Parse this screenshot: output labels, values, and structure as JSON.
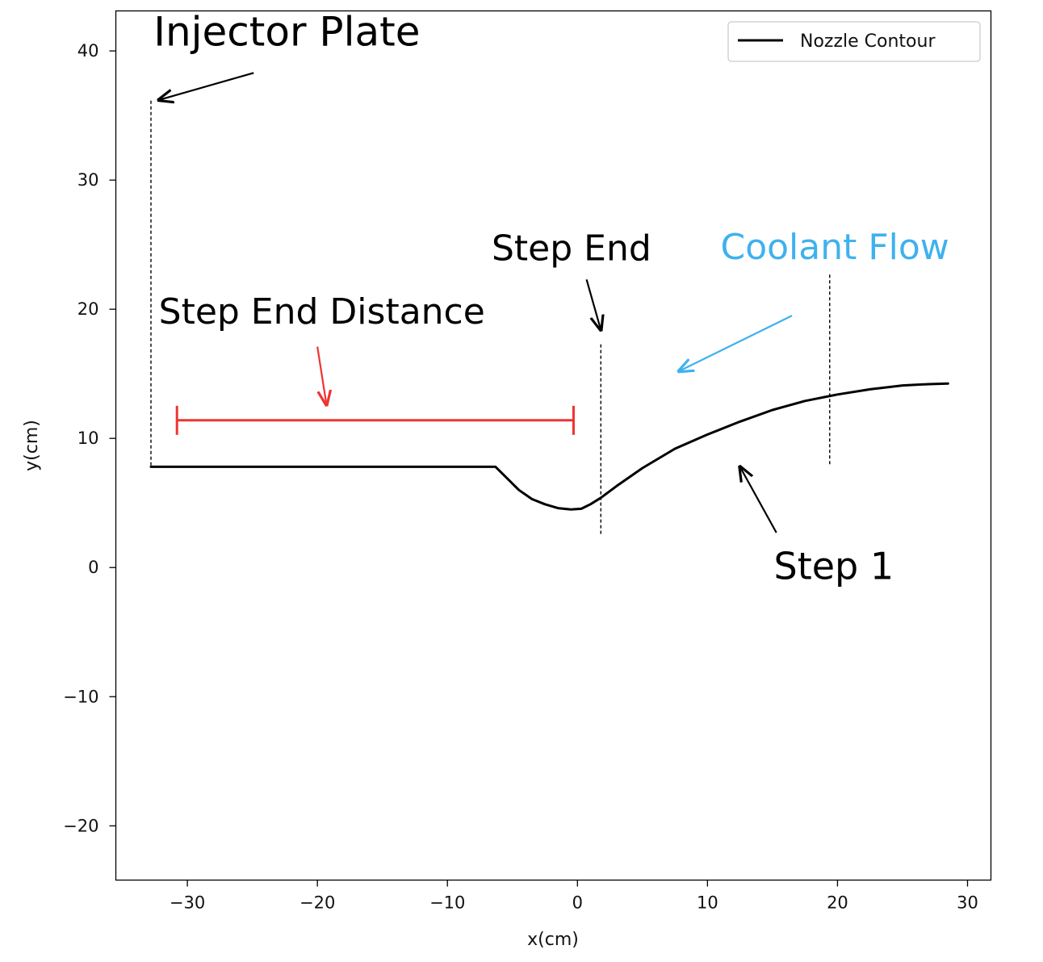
{
  "chart_data": {
    "type": "line",
    "title": "",
    "xlabel": "x(cm)",
    "ylabel": "y(cm)",
    "xlim": [
      -35.5,
      31.8
    ],
    "ylim": [
      -24.2,
      43.1
    ],
    "xticks": [
      -30,
      -20,
      -10,
      0,
      10,
      20,
      30
    ],
    "yticks": [
      -20,
      -10,
      0,
      10,
      20,
      30,
      40
    ],
    "xtick_labels": [
      "−30",
      "−20",
      "−10",
      "0",
      "10",
      "20",
      "30"
    ],
    "ytick_labels": [
      "−20",
      "−10",
      "0",
      "10",
      "20",
      "30",
      "40"
    ],
    "grid": false,
    "legend_position": "top-right",
    "series": [
      {
        "name": "Nozzle Contour",
        "color": "#000000",
        "x": [
          -32.8,
          -20,
          -10,
          -6.3,
          -5.5,
          -4.5,
          -3.5,
          -2.5,
          -1.5,
          -0.5,
          0.3,
          1.0,
          1.8,
          3,
          5,
          7.5,
          10,
          12.5,
          15,
          17.5,
          20,
          22.5,
          25,
          27,
          28.5
        ],
        "y": [
          7.8,
          7.8,
          7.8,
          7.8,
          7.0,
          6.0,
          5.3,
          4.9,
          4.6,
          4.5,
          4.55,
          4.9,
          5.4,
          6.3,
          7.7,
          9.2,
          10.3,
          11.3,
          12.2,
          12.9,
          13.4,
          13.8,
          14.1,
          14.2,
          14.25
        ]
      }
    ],
    "reference_lines": [
      {
        "x": -32.8,
        "y_from": 7.9,
        "y_to": 36.2
      },
      {
        "x": 1.8,
        "y_from": 2.6,
        "y_to": 17.3
      },
      {
        "x": 19.4,
        "y_from": 8.0,
        "y_to": 22.8
      }
    ],
    "bracket": {
      "x_from": -30.8,
      "x_to": -0.3,
      "y": 11.4,
      "color": "#ee3333"
    },
    "annotations": [
      {
        "key": "injector_plate",
        "text": "Injector Plate",
        "x": -32.6,
        "y": 40.4,
        "color": "#000000",
        "size": 50,
        "arrow_from": [
          -24.9,
          38.3
        ],
        "arrow_to": [
          -32.2,
          36.2
        ]
      },
      {
        "key": "step_end",
        "text": "Step End",
        "x": -6.6,
        "y": 23.8,
        "color": "#000000",
        "size": 44,
        "arrow_from": [
          0.7,
          22.3
        ],
        "arrow_to": [
          1.8,
          18.4
        ]
      },
      {
        "key": "step_end_distance",
        "text": "Step End Distance",
        "x": -32.2,
        "y": 18.9,
        "color": "#000000",
        "size": 44,
        "arrow_from": [
          -20.0,
          17.1
        ],
        "arrow_to": [
          -19.3,
          12.6
        ]
      },
      {
        "key": "coolant_flow",
        "text": "Coolant Flow",
        "x": 11.0,
        "y": 23.9,
        "color": "#3fb1ef",
        "size": 44,
        "arrow_from": [
          16.5,
          19.5
        ],
        "arrow_to": [
          7.8,
          15.2
        ]
      },
      {
        "key": "step_1",
        "text": "Step 1",
        "x": 15.1,
        "y": -0.9,
        "color": "#000000",
        "size": 46,
        "arrow_from": [
          15.3,
          2.7
        ],
        "arrow_to": [
          12.5,
          7.8
        ]
      }
    ]
  }
}
